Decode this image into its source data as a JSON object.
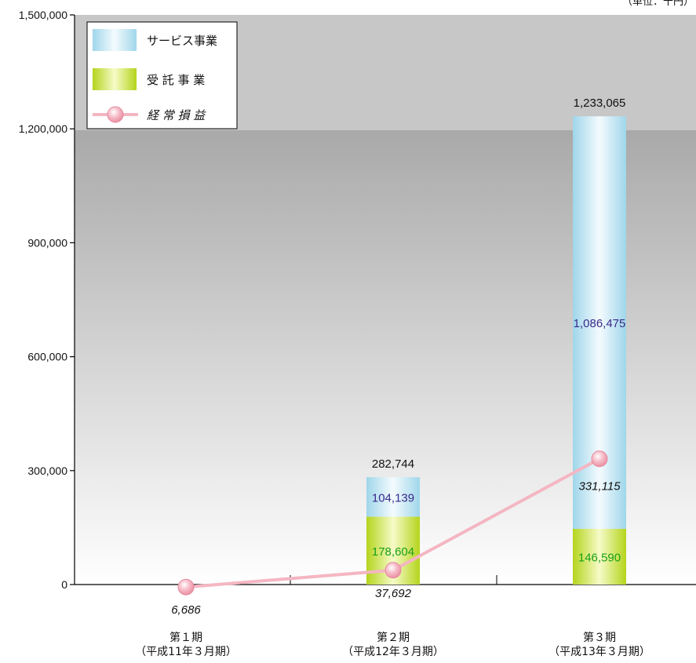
{
  "unit_label": "（単位：千円）",
  "chart_data": {
    "type": "bar",
    "stacked": true,
    "categories": [
      {
        "line1": "第１期",
        "line2": "（平成11年３月期）"
      },
      {
        "line1": "第２期",
        "line2": "（平成12年３月期）"
      },
      {
        "line1": "第３期",
        "line2": "（平成13年３月期）"
      }
    ],
    "ylim": [
      0,
      1500000
    ],
    "y_ticks": [
      "0",
      "300,000",
      "600,000",
      "900,000",
      "1,200,000",
      "1,500,000"
    ],
    "y_tick_values": [
      0,
      300000,
      600000,
      900000,
      1200000,
      1500000
    ],
    "series": [
      {
        "name": "受 託 事 業",
        "values": [
          null,
          178604,
          146590
        ],
        "labels": [
          "",
          "178,604",
          "146,590"
        ],
        "color": "#a8cc10"
      },
      {
        "name": "サービス事業",
        "values": [
          null,
          104139,
          1086475
        ],
        "labels": [
          "",
          "104,139",
          "1,086,475"
        ],
        "color": "#8ccfe6"
      }
    ],
    "totals": [
      null,
      282744,
      1233065
    ],
    "total_labels": [
      "",
      "282,744",
      "1,233,065"
    ],
    "line_series": {
      "name": "経 常 損 益",
      "values": [
        -6686,
        37692,
        331115
      ],
      "labels": [
        "6,686",
        "37,692",
        "331,115"
      ],
      "color": "#f4b6c2"
    },
    "legend": [
      "サービス事業",
      "受 託 事 業",
      "経 常 損 益"
    ],
    "legend_position": "top-left",
    "label_colors": {
      "service": "#3a2a8c",
      "trust": "#1aa01a"
    }
  }
}
